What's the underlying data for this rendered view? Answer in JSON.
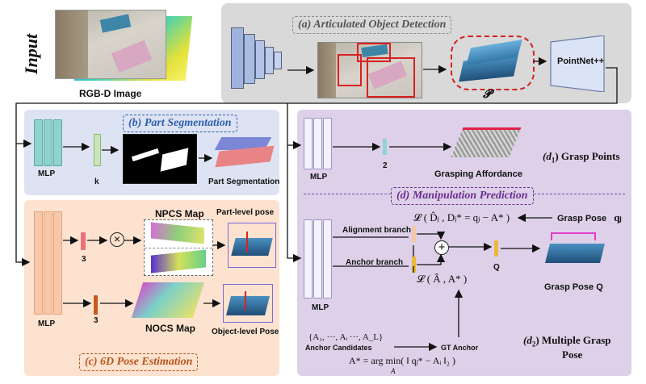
{
  "input": {
    "title": "Input",
    "image_label": "RGB-D Image"
  },
  "panel_a": {
    "title": "(a) Articulated Object Detection",
    "pointnet_label": "PointNet++",
    "point_symbol": "𝓟"
  },
  "panel_b": {
    "title": "(b) Part Segmentation",
    "mlp_label": "MLP",
    "k_label": "k",
    "output_label": "Part Segmentation"
  },
  "panel_c": {
    "title": "(c) 6D Pose Estimation",
    "mlp_label": "MLP",
    "dim_top": "3",
    "dim_bottom": "3",
    "npcs_label": "NPCS Map",
    "nocs_label": "NOCS Map",
    "part_pose_label": "Part-level pose",
    "object_pose_label": "Object-level Pose"
  },
  "panel_d": {
    "title": "(d) Manipulation Prediction",
    "d1": {
      "title_prefix": "(d",
      "title_sub": "1",
      "title_suffix": ") Grasp Points",
      "mlp_label": "MLP",
      "dim": "2",
      "affordance_label": "Grasping Affordance"
    },
    "d2": {
      "title_prefix": "(d",
      "title_sub": "2",
      "title_suffix": ") Multiple Grasp",
      "title_line2": "Pose",
      "mlp_label": "MLP",
      "alignment_branch": "Alignment branch",
      "anchor_branch": "Anchor branch",
      "loss_d": "𝓛 ( D̂ⱼ , Dⱼ* = qⱼ − A* )",
      "loss_a": "𝓛 ( Â , A* )",
      "grasp_pose_label": "Grasp Pose",
      "grasp_pose_symbol": "qⱼ",
      "q_label": "Q",
      "grasp_pose_q_label": "Grasp Pose Q",
      "anchor_set": "{A₁, ···, Aᵢ ···, A_L}",
      "anchor_candidates": "Anchor Candidates",
      "gt_anchor": "GT Anchor",
      "argmin_formula": "A* = arg min( ‖ qⱼ* − Aᵢ ‖₂ )",
      "argmin_sub": "A"
    }
  },
  "colors": {
    "panel_a_bg": "#d9d9d9",
    "panel_b_bg": "#dde3f2",
    "panel_c_bg": "#fce2cf",
    "panel_d_bg": "#ddd0e8",
    "title_blue": "#2d5fb0",
    "title_orange": "#b8541a",
    "title_purple": "#6b2c91",
    "red_box": "#d92020"
  }
}
